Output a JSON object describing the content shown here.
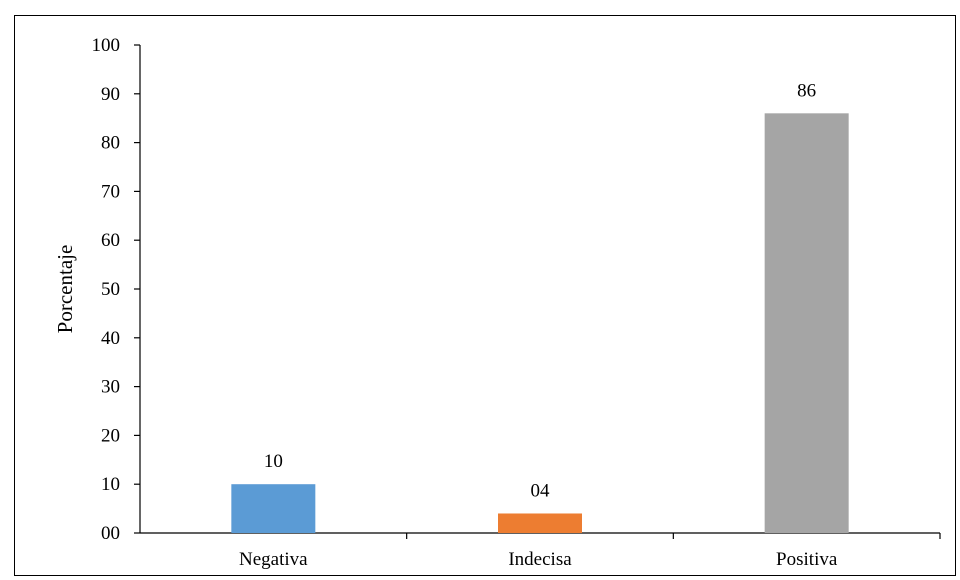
{
  "chart_data": {
    "type": "bar",
    "categories": [
      "Negativa",
      "Indecisa",
      "Positiva"
    ],
    "values": [
      10,
      4,
      86
    ],
    "data_labels": [
      "10",
      "04",
      "86"
    ],
    "colors": [
      "#5b9bd5",
      "#ed7d31",
      "#a5a5a5"
    ],
    "ylabel": "Porcentaje",
    "ylim": [
      0,
      100
    ],
    "yticks": [
      0,
      10,
      20,
      30,
      40,
      50,
      60,
      70,
      80,
      90,
      100
    ],
    "ytick_labels": [
      "00",
      "10",
      "20",
      "30",
      "40",
      "50",
      "60",
      "70",
      "80",
      "90",
      "100"
    ],
    "grid": false,
    "legend": "none"
  }
}
